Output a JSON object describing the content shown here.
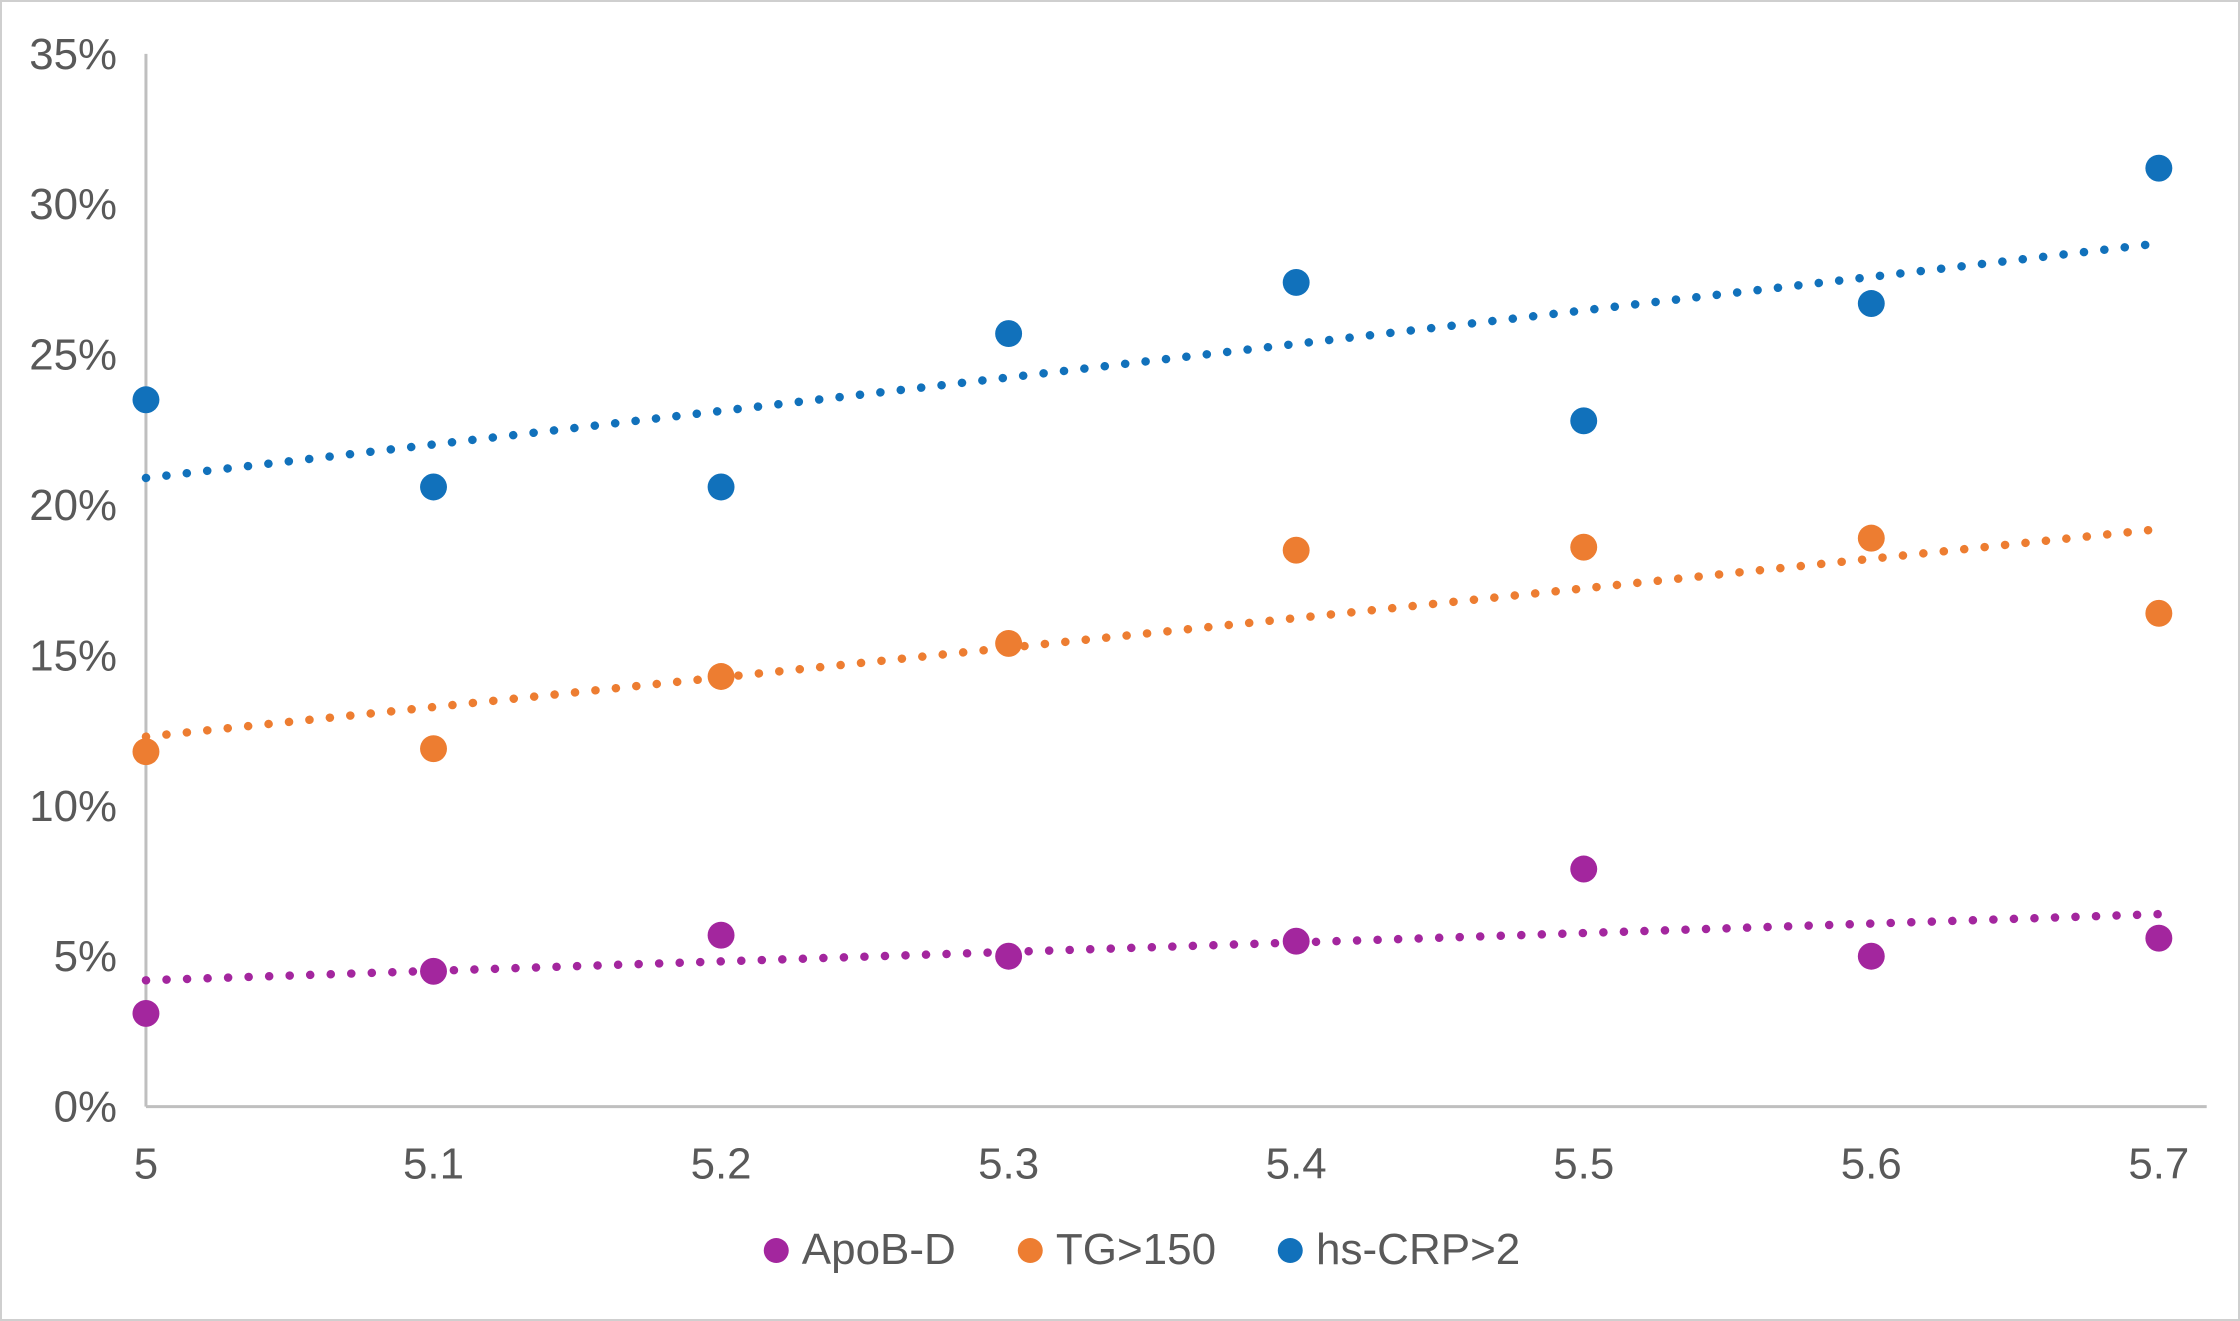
{
  "chart_data": {
    "type": "scatter",
    "title": "",
    "xlabel": "",
    "ylabel": "",
    "x": [
      5.0,
      5.1,
      5.2,
      5.3,
      5.4,
      5.5,
      5.6,
      5.7
    ],
    "x_tick_labels": [
      "5",
      "5.1",
      "5.2",
      "5.3",
      "5.4",
      "5.5",
      "5.6",
      "5.7"
    ],
    "y_tick_labels": [
      "0%",
      "5%",
      "10%",
      "15%",
      "20%",
      "25%",
      "30%",
      "35%"
    ],
    "y_tick_values": [
      0,
      5,
      10,
      15,
      20,
      25,
      30,
      35
    ],
    "xlim": [
      5.0,
      5.7
    ],
    "ylim": [
      0,
      35
    ],
    "grid": false,
    "legend_position": "bottom",
    "series": [
      {
        "name": "ApoB-D",
        "color": "#a3269e",
        "values": [
          3.1,
          4.5,
          5.7,
          5.0,
          5.5,
          7.9,
          5.0,
          5.6
        ],
        "trendline": {
          "style": "dotted",
          "start": 4.2,
          "end": 6.4
        }
      },
      {
        "name": "TG>150",
        "color": "#ed7d31",
        "values": [
          11.8,
          11.9,
          14.3,
          15.4,
          18.5,
          18.6,
          18.9,
          16.4
        ],
        "trendline": {
          "style": "dotted",
          "start": 12.3,
          "end": 19.2
        }
      },
      {
        "name": "hs-CRP>2",
        "color": "#1171bb",
        "values": [
          23.5,
          20.6,
          20.6,
          25.7,
          27.4,
          22.8,
          26.7,
          31.2
        ],
        "trendline": {
          "style": "dotted",
          "start": 20.9,
          "end": 28.7
        }
      }
    ]
  },
  "style": {
    "axis_line_color": "#bfbfbf",
    "tick_label_color": "#595959",
    "background": "#ffffff",
    "border_color": "#cfcfcf"
  }
}
